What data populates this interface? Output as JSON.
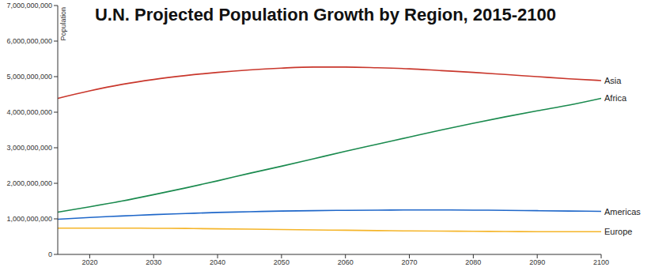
{
  "chart_data": {
    "type": "line",
    "title": "U.N. Projected Population Growth by Region, 2015-2100",
    "y_label": "Population",
    "x": [
      2015,
      2020,
      2025,
      2030,
      2035,
      2040,
      2045,
      2050,
      2055,
      2060,
      2065,
      2070,
      2075,
      2080,
      2085,
      2090,
      2095,
      2100
    ],
    "series": [
      {
        "name": "Asia",
        "color": "#c9372c",
        "values": [
          4390000000,
          4600000000,
          4780000000,
          4920000000,
          5030000000,
          5120000000,
          5190000000,
          5240000000,
          5270000000,
          5270000000,
          5250000000,
          5220000000,
          5170000000,
          5120000000,
          5060000000,
          5000000000,
          4940000000,
          4890000000
        ]
      },
      {
        "name": "Africa",
        "color": "#1a8a4e",
        "values": [
          1190000000,
          1340000000,
          1500000000,
          1680000000,
          1870000000,
          2070000000,
          2280000000,
          2480000000,
          2690000000,
          2900000000,
          3100000000,
          3300000000,
          3500000000,
          3690000000,
          3870000000,
          4040000000,
          4200000000,
          4390000000
        ]
      },
      {
        "name": "Americas",
        "color": "#1f67c9",
        "values": [
          990000000,
          1040000000,
          1080000000,
          1120000000,
          1150000000,
          1180000000,
          1200000000,
          1220000000,
          1230000000,
          1240000000,
          1245000000,
          1250000000,
          1250000000,
          1245000000,
          1240000000,
          1230000000,
          1220000000,
          1210000000
        ]
      },
      {
        "name": "Europe",
        "color": "#f5b529",
        "values": [
          740000000,
          740000000,
          740000000,
          735000000,
          730000000,
          720000000,
          710000000,
          700000000,
          690000000,
          680000000,
          670000000,
          660000000,
          655000000,
          650000000,
          645000000,
          640000000,
          640000000,
          640000000
        ]
      }
    ],
    "xlim": [
      2015,
      2100
    ],
    "xticks": [
      2020,
      2030,
      2040,
      2050,
      2060,
      2070,
      2080,
      2090,
      2100
    ],
    "ylim": [
      0,
      7000000000
    ],
    "yticks": [
      0,
      {
        "value": 1000000000,
        "label": "1,000,000,000"
      },
      {
        "value": 2000000000,
        "label": "2,000,000,000"
      },
      {
        "value": 3000000000,
        "label": "3,000,000,000"
      },
      {
        "value": 4000000000,
        "label": "4,000,000,000"
      },
      {
        "value": 5000000000,
        "label": "5,000,000,000"
      },
      {
        "value": 6000000000,
        "label": "6,000,000,000"
      },
      {
        "value": 7000000000,
        "label": "7,000,000,000"
      }
    ],
    "grid": false,
    "legend": "none"
  }
}
